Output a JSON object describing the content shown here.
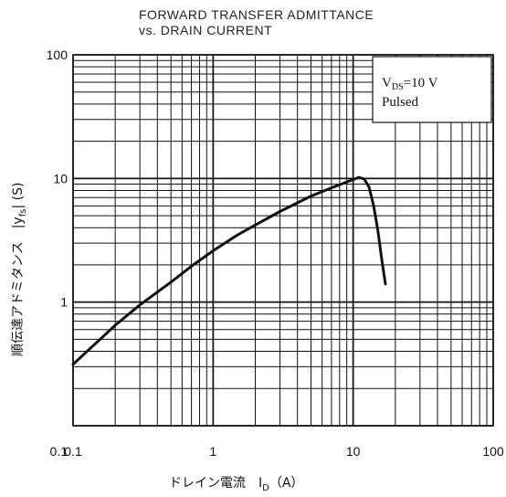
{
  "chart_data": {
    "type": "line",
    "title_line1": "FORWARD TRANSFER ADMITTANCE",
    "title_line2": "vs. DRAIN CURRENT",
    "xlabel": "ドレイン電流　I",
    "xlabel_sub": "D",
    "xlabel_unit": "（A）",
    "ylabel": "順伝達アドミタンス　|y",
    "ylabel_sub": "fs",
    "ylabel_unit": "| (S)",
    "x_scale": "log",
    "y_scale": "log",
    "xlim": [
      0.1,
      100
    ],
    "ylim": [
      0.1,
      100
    ],
    "x_tick_labels": [
      "0.1",
      "1",
      "10",
      "100"
    ],
    "y_tick_labels": [
      "100",
      "10",
      "1",
      "0.1"
    ],
    "grid": true,
    "legend_box": {
      "line1_main": "V",
      "line1_sub": "DS",
      "line1_rest": "=10  V",
      "line2": "Pulsed",
      "placement": "top-right"
    },
    "series": [
      {
        "x": [
          0.12,
          0.15,
          0.2,
          0.3,
          0.5,
          0.7,
          1,
          1.5,
          2,
          3,
          5,
          7,
          10,
          11,
          12,
          13,
          14,
          15,
          16,
          17
        ],
        "y": [
          0.38,
          0.48,
          0.65,
          0.95,
          1.45,
          1.95,
          2.6,
          3.5,
          4.2,
          5.4,
          7.2,
          8.4,
          9.8,
          10.2,
          9.9,
          8.5,
          6.0,
          3.8,
          2.2,
          1.4
        ]
      }
    ]
  }
}
